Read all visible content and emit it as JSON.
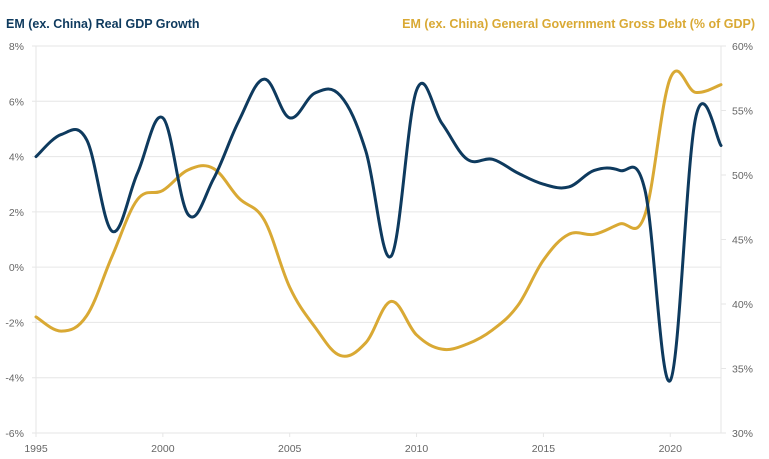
{
  "chart_data": {
    "type": "line",
    "title_left": "EM (ex. China) Real GDP Growth",
    "title_right": "EM (ex. China) General Government Gross Debt (% of GDP)",
    "x": [
      1995,
      1996,
      1997,
      1998,
      1999,
      2000,
      2001,
      2002,
      2003,
      2004,
      2005,
      2006,
      2007,
      2008,
      2009,
      2010,
      2011,
      2012,
      2013,
      2014,
      2015,
      2016,
      2017,
      2018,
      2019,
      2020,
      2021,
      2022
    ],
    "x_ticks": [
      "1995",
      "2000",
      "2005",
      "2010",
      "2015",
      "2020"
    ],
    "x_tick_values": [
      1995,
      2000,
      2005,
      2010,
      2015,
      2020
    ],
    "xlim": [
      1995,
      2022
    ],
    "series": [
      {
        "name": "EM (ex. China) Real GDP Growth",
        "axis": "left",
        "color": "#0e3a5e",
        "values": [
          4.0,
          4.8,
          4.6,
          1.3,
          3.4,
          5.4,
          1.9,
          3.2,
          5.3,
          6.8,
          5.4,
          6.3,
          6.2,
          4.2,
          0.4,
          6.4,
          5.2,
          3.9,
          3.9,
          3.4,
          3.0,
          2.9,
          3.5,
          3.5,
          2.8,
          -4.1,
          5.4,
          4.4
        ]
      },
      {
        "name": "EM (ex. China) General Government Gross Debt (% of GDP)",
        "axis": "right",
        "color": "#d9a934",
        "values": [
          39.0,
          37.9,
          39.1,
          43.7,
          48.1,
          48.8,
          50.4,
          50.5,
          48.2,
          46.5,
          41.3,
          38.2,
          36.0,
          37.0,
          40.2,
          37.6,
          36.5,
          36.9,
          38.0,
          39.9,
          43.4,
          45.4,
          45.4,
          46.2,
          46.9,
          57.5,
          56.4,
          57.0
        ]
      }
    ],
    "y_left": {
      "ylim": [
        -6,
        8
      ],
      "ticks": [
        8,
        6,
        4,
        2,
        0,
        -2,
        -4,
        -6
      ],
      "tick_labels": [
        "8%",
        "6%",
        "4%",
        "2%",
        "0%",
        "-2%",
        "-4%",
        "-6%"
      ]
    },
    "y_right": {
      "ylim": [
        30,
        60
      ],
      "ticks": [
        60,
        55,
        50,
        45,
        40,
        35,
        30
      ],
      "tick_labels": [
        "60%",
        "55%",
        "50%",
        "45%",
        "40%",
        "35%",
        "30%"
      ]
    },
    "grid": true,
    "legend": "none"
  }
}
